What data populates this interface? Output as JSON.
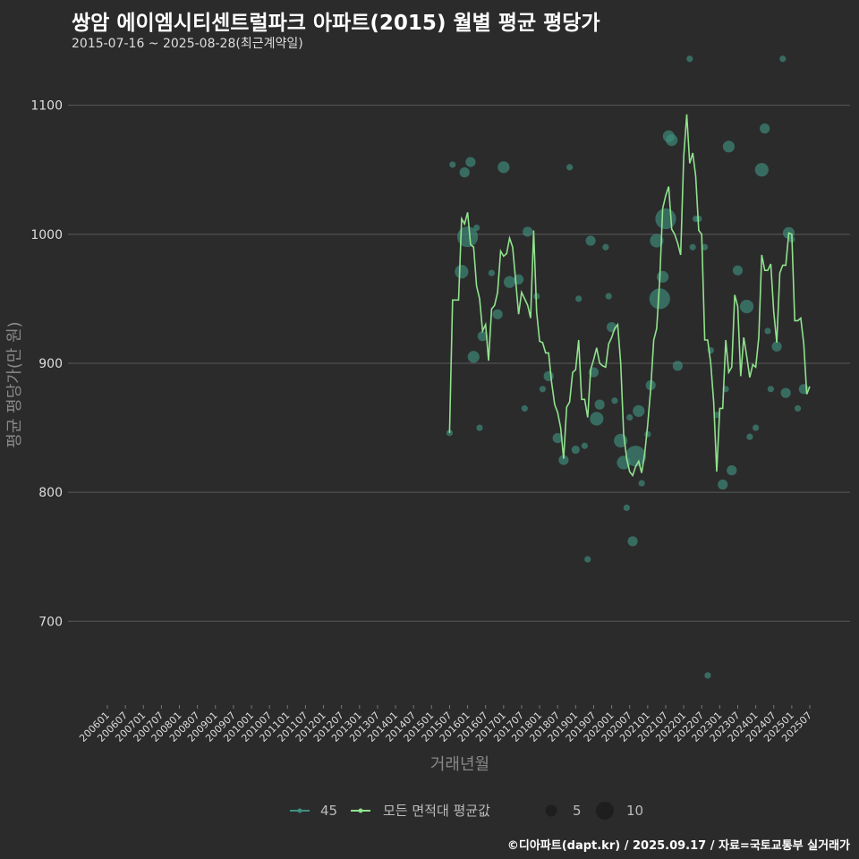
{
  "header": {
    "title": "쌍암 에이엠시티센트럴파크 아파트(2015) 월별 평균 평당가",
    "subtitle": "2015-07-16 ~ 2025-08-28(최근계약일)"
  },
  "caption": "©디아파트(dapt.kr) / 2025.09.17 / 자료=국토교통부 실거래가",
  "colors": {
    "bg": "#2b2b2c",
    "grid": "#5a5a5a",
    "avg_line": "#90e28c",
    "dots": "#3f8f7e",
    "text": "#dddddd"
  },
  "chart_data": {
    "type": "line",
    "title": "쌍암 에이엠시티센트럴파크 아파트(2015) 월별 평균 평당가",
    "xlabel": "거래년월",
    "ylabel": "평균 평당가(만 원)",
    "ylim": [
      635,
      1140
    ],
    "yticks": [
      700,
      800,
      900,
      1000,
      1100
    ],
    "x_range": [
      "2006-01",
      "2025-08"
    ],
    "xtick_labels": [
      "200601",
      "200607",
      "200701",
      "200707",
      "200801",
      "200807",
      "200901",
      "200907",
      "201001",
      "201007",
      "201101",
      "201107",
      "201201",
      "201207",
      "201301",
      "201307",
      "201401",
      "201407",
      "201501",
      "201507",
      "201601",
      "201607",
      "201701",
      "201707",
      "201801",
      "201807",
      "201901",
      "201907",
      "202001",
      "202007",
      "202101",
      "202107",
      "202201",
      "202207",
      "202301",
      "202307",
      "202401",
      "202407",
      "202501",
      "202507"
    ],
    "legend": {
      "items": [
        {
          "label": "45",
          "kind": "series-dot"
        },
        {
          "label": "모든 면적대 평균값",
          "kind": "series-line"
        },
        {
          "label": "5",
          "kind": "size"
        },
        {
          "label": "10",
          "kind": "size"
        }
      ]
    },
    "series": [
      {
        "name": "모든 면적대 평균값",
        "points": [
          [
            "2015-07",
            846
          ],
          [
            "2015-08",
            949
          ],
          [
            "2015-09",
            949
          ],
          [
            "2015-10",
            949
          ],
          [
            "2015-11",
            1012
          ],
          [
            "2015-12",
            1008
          ],
          [
            "2016-01",
            1017
          ],
          [
            "2016-02",
            992
          ],
          [
            "2016-03",
            990
          ],
          [
            "2016-04",
            960
          ],
          [
            "2016-05",
            950
          ],
          [
            "2016-06",
            925
          ],
          [
            "2016-07",
            930
          ],
          [
            "2016-08",
            902
          ],
          [
            "2016-09",
            942
          ],
          [
            "2016-10",
            945
          ],
          [
            "2016-11",
            955
          ],
          [
            "2016-12",
            987
          ],
          [
            "2017-01",
            983
          ],
          [
            "2017-02",
            985
          ],
          [
            "2017-03",
            997
          ],
          [
            "2017-04",
            990
          ],
          [
            "2017-05",
            965
          ],
          [
            "2017-06",
            938
          ],
          [
            "2017-07",
            955
          ],
          [
            "2017-08",
            950
          ],
          [
            "2017-09",
            945
          ],
          [
            "2017-10",
            935
          ],
          [
            "2017-11",
            1003
          ],
          [
            "2017-12",
            940
          ],
          [
            "2018-01",
            917
          ],
          [
            "2018-02",
            916
          ],
          [
            "2018-03",
            908
          ],
          [
            "2018-04",
            908
          ],
          [
            "2018-05",
            885
          ],
          [
            "2018-06",
            868
          ],
          [
            "2018-07",
            862
          ],
          [
            "2018-08",
            850
          ],
          [
            "2018-09",
            826
          ],
          [
            "2018-10",
            866
          ],
          [
            "2018-11",
            870
          ],
          [
            "2018-12",
            893
          ],
          [
            "2019-01",
            895
          ],
          [
            "2019-02",
            918
          ],
          [
            "2019-03",
            872
          ],
          [
            "2019-04",
            872
          ],
          [
            "2019-05",
            858
          ],
          [
            "2019-06",
            895
          ],
          [
            "2019-07",
            903
          ],
          [
            "2019-08",
            912
          ],
          [
            "2019-09",
            900
          ],
          [
            "2019-10",
            898
          ],
          [
            "2019-11",
            897
          ],
          [
            "2019-12",
            915
          ],
          [
            "2020-01",
            920
          ],
          [
            "2020-02",
            927
          ],
          [
            "2020-03",
            930
          ],
          [
            "2020-04",
            900
          ],
          [
            "2020-05",
            845
          ],
          [
            "2020-06",
            826
          ],
          [
            "2020-07",
            816
          ],
          [
            "2020-08",
            813
          ],
          [
            "2020-09",
            820
          ],
          [
            "2020-10",
            824
          ],
          [
            "2020-11",
            815
          ],
          [
            "2020-12",
            830
          ],
          [
            "2021-01",
            852
          ],
          [
            "2021-02",
            880
          ],
          [
            "2021-03",
            918
          ],
          [
            "2021-04",
            927
          ],
          [
            "2021-05",
            965
          ],
          [
            "2021-06",
            1020
          ],
          [
            "2021-07",
            1030
          ],
          [
            "2021-08",
            1037
          ],
          [
            "2021-09",
            1004
          ],
          [
            "2021-10",
            1000
          ],
          [
            "2021-11",
            993
          ],
          [
            "2021-12",
            984
          ],
          [
            "2022-01",
            1060
          ],
          [
            "2022-02",
            1093
          ],
          [
            "2022-03",
            1055
          ],
          [
            "2022-04",
            1063
          ],
          [
            "2022-05",
            1045
          ],
          [
            "2022-06",
            1003
          ],
          [
            "2022-07",
            1000
          ],
          [
            "2022-08",
            918
          ],
          [
            "2022-09",
            918
          ],
          [
            "2022-10",
            900
          ],
          [
            "2022-11",
            870
          ],
          [
            "2022-12",
            816
          ],
          [
            "2023-01",
            865
          ],
          [
            "2023-02",
            865
          ],
          [
            "2023-03",
            918
          ],
          [
            "2023-04",
            893
          ],
          [
            "2023-05",
            897
          ],
          [
            "2023-06",
            953
          ],
          [
            "2023-07",
            944
          ],
          [
            "2023-08",
            890
          ],
          [
            "2023-09",
            920
          ],
          [
            "2023-10",
            905
          ],
          [
            "2023-11",
            889
          ],
          [
            "2023-12",
            899
          ],
          [
            "2024-01",
            897
          ],
          [
            "2024-02",
            920
          ],
          [
            "2024-03",
            984
          ],
          [
            "2024-04",
            972
          ],
          [
            "2024-05",
            972
          ],
          [
            "2024-06",
            977
          ],
          [
            "2024-07",
            940
          ],
          [
            "2024-08",
            916
          ],
          [
            "2024-09",
            970
          ],
          [
            "2024-10",
            976
          ],
          [
            "2024-11",
            976
          ],
          [
            "2024-12",
            1001
          ],
          [
            "2025-01",
            1000
          ],
          [
            "2025-02",
            933
          ],
          [
            "2025-03",
            933
          ],
          [
            "2025-04",
            935
          ],
          [
            "2025-05",
            915
          ],
          [
            "2025-06",
            876
          ],
          [
            "2025-07",
            882
          ]
        ]
      },
      {
        "name": "45",
        "points": [
          [
            "2015-07",
            846,
            2
          ],
          [
            "2015-08",
            1054,
            2
          ],
          [
            "2015-11",
            971,
            6
          ],
          [
            "2015-12",
            1048,
            4
          ],
          [
            "2016-01",
            998,
            10
          ],
          [
            "2016-02",
            1056,
            4
          ],
          [
            "2016-03",
            905,
            5
          ],
          [
            "2016-04",
            1005,
            2
          ],
          [
            "2016-05",
            850,
            2
          ],
          [
            "2016-06",
            921,
            4
          ],
          [
            "2016-09",
            970,
            2
          ],
          [
            "2016-11",
            938,
            4
          ],
          [
            "2017-01",
            1052,
            5
          ],
          [
            "2017-03",
            963,
            5
          ],
          [
            "2017-06",
            965,
            4
          ],
          [
            "2017-08",
            865,
            2
          ],
          [
            "2017-09",
            1002,
            4
          ],
          [
            "2017-12",
            952,
            2
          ],
          [
            "2018-02",
            880,
            2
          ],
          [
            "2018-04",
            890,
            4
          ],
          [
            "2018-07",
            842,
            4
          ],
          [
            "2018-09",
            825,
            4
          ],
          [
            "2018-11",
            1052,
            2
          ],
          [
            "2019-01",
            833,
            3
          ],
          [
            "2019-02",
            950,
            2
          ],
          [
            "2019-04",
            836,
            2
          ],
          [
            "2019-05",
            748,
            2
          ],
          [
            "2019-06",
            995,
            4
          ],
          [
            "2019-07",
            893,
            4
          ],
          [
            "2019-08",
            857,
            6
          ],
          [
            "2019-09",
            868,
            4
          ],
          [
            "2019-11",
            990,
            2
          ],
          [
            "2019-12",
            952,
            2
          ],
          [
            "2020-01",
            928,
            4
          ],
          [
            "2020-02",
            871,
            2
          ],
          [
            "2020-04",
            840,
            6
          ],
          [
            "2020-05",
            823,
            6
          ],
          [
            "2020-06",
            788,
            2
          ],
          [
            "2020-07",
            858,
            2
          ],
          [
            "2020-08",
            762,
            4
          ],
          [
            "2020-09",
            828,
            10
          ],
          [
            "2020-10",
            863,
            5
          ],
          [
            "2020-11",
            807,
            2
          ],
          [
            "2021-01",
            845,
            2
          ],
          [
            "2021-02",
            883,
            4
          ],
          [
            "2021-04",
            995,
            6
          ],
          [
            "2021-05",
            950,
            10
          ],
          [
            "2021-06",
            967,
            5
          ],
          [
            "2021-07",
            1012,
            10
          ],
          [
            "2021-08",
            1076,
            5
          ],
          [
            "2021-09",
            1073,
            5
          ],
          [
            "2021-11",
            898,
            4
          ],
          [
            "2022-03",
            1136,
            2
          ],
          [
            "2022-04",
            990,
            2
          ],
          [
            "2022-05",
            1012,
            2
          ],
          [
            "2022-06",
            1012,
            2
          ],
          [
            "2022-08",
            990,
            2
          ],
          [
            "2022-09",
            658,
            2
          ],
          [
            "2022-10",
            910,
            2
          ],
          [
            "2022-12",
            860,
            2
          ],
          [
            "2023-02",
            806,
            4
          ],
          [
            "2023-03",
            880,
            2
          ],
          [
            "2023-04",
            1068,
            5
          ],
          [
            "2023-05",
            817,
            4
          ],
          [
            "2023-07",
            972,
            4
          ],
          [
            "2023-10",
            944,
            6
          ],
          [
            "2023-11",
            843,
            2
          ],
          [
            "2024-01",
            850,
            2
          ],
          [
            "2024-03",
            1050,
            6
          ],
          [
            "2024-04",
            1082,
            4
          ],
          [
            "2024-05",
            925,
            2
          ],
          [
            "2024-06",
            880,
            2
          ],
          [
            "2024-08",
            913,
            4
          ],
          [
            "2024-10",
            1136,
            2
          ],
          [
            "2024-11",
            877,
            4
          ],
          [
            "2024-12",
            1001,
            5
          ],
          [
            "2025-01",
            996,
            2
          ],
          [
            "2025-03",
            865,
            2
          ],
          [
            "2025-05",
            880,
            4
          ]
        ]
      }
    ]
  }
}
